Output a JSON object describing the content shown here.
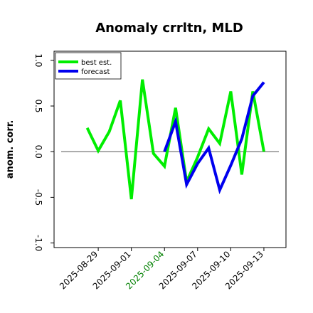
{
  "chart_data": {
    "type": "line",
    "title": "Anomaly crrltn, MLD",
    "ylabel": "anom. corr.",
    "xlabel": "",
    "ylim": [
      -1.05,
      1.1
    ],
    "xlim": [
      "2025-08-25",
      "2025-09-15"
    ],
    "yticks": [
      -1.0,
      -0.5,
      0.0,
      0.5,
      1.0
    ],
    "ytick_labels": [
      "-1.0",
      "-0.5",
      "0.0",
      "0.5",
      "1.0"
    ],
    "xticks": [
      "2025-08-29",
      "2025-09-01",
      "2025-09-04",
      "2025-09-07",
      "2025-09-10",
      "2025-09-13"
    ],
    "xtick_labels": [
      "2025-08-29",
      "2025-09-01",
      "2025-09-04",
      "2025-09-07",
      "2025-09-10",
      "2025-09-13"
    ],
    "xtick_colors": [
      "#000000",
      "#000000",
      "#008000",
      "#000000",
      "#000000",
      "#000000"
    ],
    "zero_line": true,
    "grid": false,
    "legend_position": "top-left",
    "series": [
      {
        "name": "best est.",
        "color": "#00ee00",
        "x": [
          "2025-08-28",
          "2025-08-29",
          "2025-08-30",
          "2025-08-31",
          "2025-09-01",
          "2025-09-02",
          "2025-09-03",
          "2025-09-04",
          "2025-09-05",
          "2025-09-06",
          "2025-09-07",
          "2025-09-08",
          "2025-09-09",
          "2025-09-10",
          "2025-09-11",
          "2025-09-12",
          "2025-09-13"
        ],
        "values": [
          0.26,
          0.01,
          0.22,
          0.56,
          -0.52,
          0.79,
          -0.02,
          -0.16,
          0.48,
          -0.33,
          -0.06,
          0.25,
          0.09,
          0.66,
          -0.25,
          0.66,
          0.0
        ]
      },
      {
        "name": "forecast",
        "color": "#0000ee",
        "x": [
          "2025-09-04",
          "2025-09-05",
          "2025-09-06",
          "2025-09-07",
          "2025-09-08",
          "2025-09-09",
          "2025-09-10",
          "2025-09-11",
          "2025-09-12",
          "2025-09-13"
        ],
        "values": [
          0.0,
          0.33,
          -0.36,
          -0.13,
          0.04,
          -0.42,
          -0.15,
          0.14,
          0.61,
          0.76
        ]
      }
    ]
  }
}
